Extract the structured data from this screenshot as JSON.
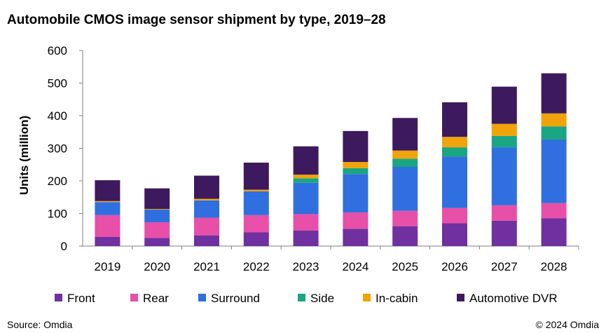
{
  "title": "Automobile CMOS image sensor shipment by type, 2019–28",
  "footer": {
    "source": "Source: Omdia",
    "copyright": "© 2024 Omdia"
  },
  "chart_data": {
    "type": "bar",
    "stacked": true,
    "title": "Automobile CMOS image sensor shipment by type, 2019–28",
    "xlabel": "",
    "ylabel": "Units (million)",
    "ylim": [
      0,
      600
    ],
    "yticks": [
      0,
      100,
      200,
      300,
      400,
      500,
      600
    ],
    "grid": false,
    "legend_position": "bottom",
    "categories": [
      "2019",
      "2020",
      "2021",
      "2022",
      "2023",
      "2024",
      "2025",
      "2026",
      "2027",
      "2028"
    ],
    "series": [
      {
        "name": "Front",
        "color": "#7030a0",
        "values": [
          28,
          25,
          33,
          42,
          48,
          53,
          61,
          70,
          78,
          85
        ]
      },
      {
        "name": "Rear",
        "color": "#e84fa8",
        "values": [
          67,
          48,
          54,
          53,
          50,
          50,
          47,
          47,
          47,
          47
        ]
      },
      {
        "name": "Surround",
        "color": "#2f6fe0",
        "values": [
          40,
          39,
          53,
          73,
          96,
          118,
          135,
          158,
          178,
          195
        ]
      },
      {
        "name": "Side",
        "color": "#1aa682",
        "values": [
          0,
          0,
          0,
          0,
          14,
          18,
          25,
          28,
          35,
          40
        ]
      },
      {
        "name": "In-cabin",
        "color": "#f0a30a",
        "values": [
          3,
          2,
          5,
          5,
          11,
          19,
          25,
          32,
          37,
          40
        ]
      },
      {
        "name": "Automotive DVR",
        "color": "#3d1a5e",
        "values": [
          64,
          63,
          71,
          83,
          87,
          95,
          100,
          106,
          114,
          123
        ]
      }
    ]
  }
}
